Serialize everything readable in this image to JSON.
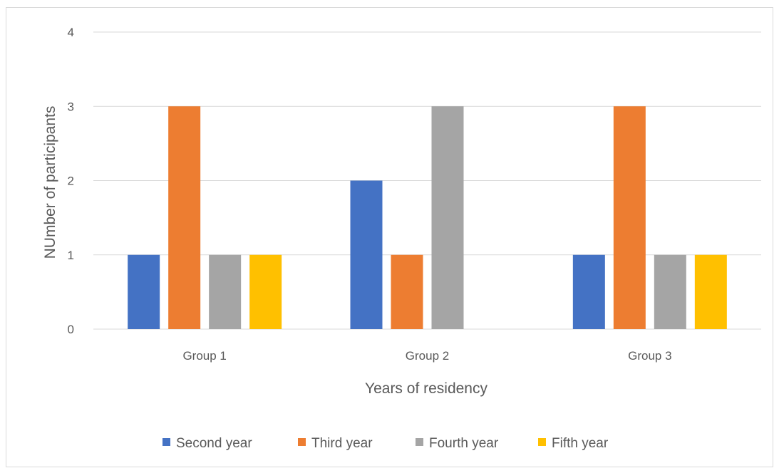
{
  "chart_data": {
    "type": "bar",
    "categories": [
      "Group 1",
      "Group 2",
      "Group 3"
    ],
    "series": [
      {
        "name": "Second year",
        "values": [
          1,
          2,
          1
        ],
        "color": "#4472c4"
      },
      {
        "name": "Third year",
        "values": [
          3,
          1,
          3
        ],
        "color": "#ed7d31"
      },
      {
        "name": "Fourth year",
        "values": [
          1,
          3,
          1
        ],
        "color": "#a5a5a5"
      },
      {
        "name": "Fifth year",
        "values": [
          1,
          0,
          1
        ],
        "color": "#ffc000"
      }
    ],
    "xlabel": "Years of residency",
    "ylabel": "NUmber of participants",
    "ylim": [
      0,
      4
    ],
    "yticks": [
      0,
      1,
      2,
      3,
      4
    ],
    "grid": true,
    "legend_position": "bottom"
  }
}
